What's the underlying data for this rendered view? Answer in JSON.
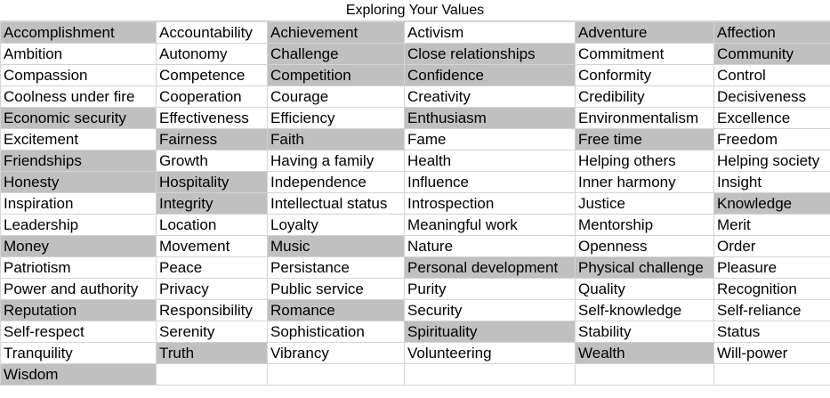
{
  "title": "Exploring Your Values",
  "colors": {
    "highlight": "#c0c0c0",
    "background": "#ffffff",
    "grid_line": "#d4d4d4"
  },
  "rows": [
    [
      {
        "text": "Accomplishment",
        "highlighted": true
      },
      {
        "text": "Accountability",
        "highlighted": false
      },
      {
        "text": "Achievement",
        "highlighted": true
      },
      {
        "text": "Activism",
        "highlighted": false
      },
      {
        "text": "Adventure",
        "highlighted": true
      },
      {
        "text": "Affection",
        "highlighted": true
      }
    ],
    [
      {
        "text": "Ambition",
        "highlighted": false
      },
      {
        "text": "Autonomy",
        "highlighted": false
      },
      {
        "text": "Challenge",
        "highlighted": true
      },
      {
        "text": "Close relationships",
        "highlighted": true
      },
      {
        "text": "Commitment",
        "highlighted": false
      },
      {
        "text": "Community",
        "highlighted": true
      }
    ],
    [
      {
        "text": "Compassion",
        "highlighted": false
      },
      {
        "text": "Competence",
        "highlighted": false
      },
      {
        "text": "Competition",
        "highlighted": true
      },
      {
        "text": "Confidence",
        "highlighted": true
      },
      {
        "text": "Conformity",
        "highlighted": false
      },
      {
        "text": "Control",
        "highlighted": false
      }
    ],
    [
      {
        "text": "Coolness under fire",
        "highlighted": false
      },
      {
        "text": "Cooperation",
        "highlighted": false
      },
      {
        "text": "Courage",
        "highlighted": false
      },
      {
        "text": "Creativity",
        "highlighted": false
      },
      {
        "text": "Credibility",
        "highlighted": false
      },
      {
        "text": "Decisiveness",
        "highlighted": false
      }
    ],
    [
      {
        "text": "Economic security",
        "highlighted": true
      },
      {
        "text": "Effectiveness",
        "highlighted": false
      },
      {
        "text": "Efficiency",
        "highlighted": false
      },
      {
        "text": "Enthusiasm",
        "highlighted": true
      },
      {
        "text": "Environmentalism",
        "highlighted": false
      },
      {
        "text": "Excellence",
        "highlighted": false
      }
    ],
    [
      {
        "text": "Excitement",
        "highlighted": false
      },
      {
        "text": "Fairness",
        "highlighted": true
      },
      {
        "text": "Faith",
        "highlighted": true
      },
      {
        "text": "Fame",
        "highlighted": false
      },
      {
        "text": "Free time",
        "highlighted": true
      },
      {
        "text": "Freedom",
        "highlighted": false
      }
    ],
    [
      {
        "text": "Friendships",
        "highlighted": true
      },
      {
        "text": "Growth",
        "highlighted": false
      },
      {
        "text": "Having a family",
        "highlighted": false
      },
      {
        "text": "Health",
        "highlighted": false
      },
      {
        "text": "Helping others",
        "highlighted": false
      },
      {
        "text": "Helping society",
        "highlighted": false
      }
    ],
    [
      {
        "text": "Honesty",
        "highlighted": true
      },
      {
        "text": "Hospitality",
        "highlighted": true
      },
      {
        "text": "Independence",
        "highlighted": false
      },
      {
        "text": "Influence",
        "highlighted": false
      },
      {
        "text": "Inner harmony",
        "highlighted": false
      },
      {
        "text": "Insight",
        "highlighted": false
      }
    ],
    [
      {
        "text": "Inspiration",
        "highlighted": false
      },
      {
        "text": "Integrity",
        "highlighted": true
      },
      {
        "text": "Intellectual status",
        "highlighted": false
      },
      {
        "text": "Introspection",
        "highlighted": false
      },
      {
        "text": "Justice",
        "highlighted": false
      },
      {
        "text": "Knowledge",
        "highlighted": true
      }
    ],
    [
      {
        "text": "Leadership",
        "highlighted": false
      },
      {
        "text": "Location",
        "highlighted": false
      },
      {
        "text": "Loyalty",
        "highlighted": false
      },
      {
        "text": "Meaningful work",
        "highlighted": false
      },
      {
        "text": "Mentorship",
        "highlighted": false
      },
      {
        "text": "Merit",
        "highlighted": false
      }
    ],
    [
      {
        "text": "Money",
        "highlighted": true
      },
      {
        "text": "Movement",
        "highlighted": false
      },
      {
        "text": "Music",
        "highlighted": true
      },
      {
        "text": "Nature",
        "highlighted": false
      },
      {
        "text": "Openness",
        "highlighted": false
      },
      {
        "text": "Order",
        "highlighted": false
      }
    ],
    [
      {
        "text": "Patriotism",
        "highlighted": false
      },
      {
        "text": "Peace",
        "highlighted": false
      },
      {
        "text": "Persistance",
        "highlighted": false
      },
      {
        "text": "Personal development",
        "highlighted": true
      },
      {
        "text": "Physical challenge",
        "highlighted": true
      },
      {
        "text": "Pleasure",
        "highlighted": false
      }
    ],
    [
      {
        "text": "Power and authority",
        "highlighted": false
      },
      {
        "text": "Privacy",
        "highlighted": false
      },
      {
        "text": "Public service",
        "highlighted": false
      },
      {
        "text": "Purity",
        "highlighted": false
      },
      {
        "text": "Quality",
        "highlighted": false
      },
      {
        "text": "Recognition",
        "highlighted": false
      }
    ],
    [
      {
        "text": "Reputation",
        "highlighted": true
      },
      {
        "text": "Responsibility",
        "highlighted": false
      },
      {
        "text": "Romance",
        "highlighted": true
      },
      {
        "text": "Security",
        "highlighted": false
      },
      {
        "text": "Self-knowledge",
        "highlighted": false
      },
      {
        "text": "Self-reliance",
        "highlighted": false
      }
    ],
    [
      {
        "text": "Self-respect",
        "highlighted": false
      },
      {
        "text": "Serenity",
        "highlighted": false
      },
      {
        "text": "Sophistication",
        "highlighted": false
      },
      {
        "text": "Spirituality",
        "highlighted": true
      },
      {
        "text": "Stability",
        "highlighted": false
      },
      {
        "text": "Status",
        "highlighted": false
      }
    ],
    [
      {
        "text": "Tranquility",
        "highlighted": false
      },
      {
        "text": "Truth",
        "highlighted": true
      },
      {
        "text": "Vibrancy",
        "highlighted": false
      },
      {
        "text": "Volunteering",
        "highlighted": false
      },
      {
        "text": "Wealth",
        "highlighted": true
      },
      {
        "text": "Will-power",
        "highlighted": false
      }
    ],
    [
      {
        "text": "Wisdom",
        "highlighted": true
      },
      {
        "text": "",
        "highlighted": false
      },
      {
        "text": "",
        "highlighted": false
      },
      {
        "text": "",
        "highlighted": false
      },
      {
        "text": "",
        "highlighted": false
      },
      {
        "text": "",
        "highlighted": false
      }
    ]
  ]
}
